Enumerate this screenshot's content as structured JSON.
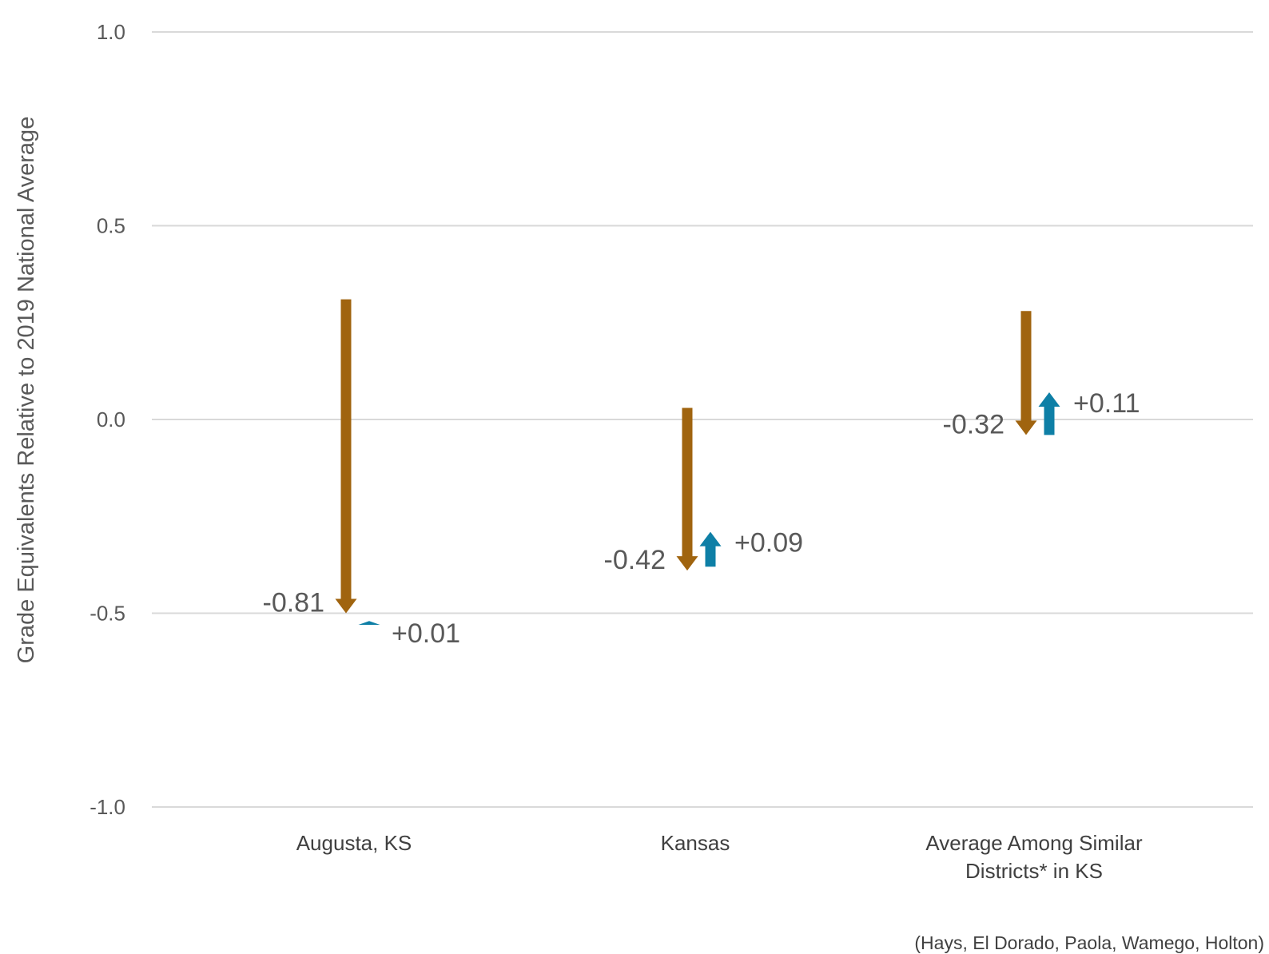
{
  "chart_data": {
    "type": "arrow",
    "ylabel": "Grade Equivalents Relative to 2019 National Average",
    "ylim": [
      -1.0,
      1.0
    ],
    "yticks": [
      1.0,
      0.5,
      0.0,
      -0.5,
      -1.0
    ],
    "ytick_labels": [
      "1.0",
      "0.5",
      "0.0",
      "-0.5",
      "-1.0"
    ],
    "grid": true,
    "categories": [
      {
        "lines": [
          "Augusta, KS"
        ]
      },
      {
        "lines": [
          "Kansas"
        ]
      },
      {
        "lines": [
          "Average Among Similar",
          "Districts* in KS"
        ]
      }
    ],
    "series": [
      {
        "color": "#A0640F",
        "direction": "down",
        "segments": [
          {
            "start": 0.31,
            "end": -0.5,
            "label": "-0.81"
          },
          {
            "start": 0.03,
            "end": -0.39,
            "label": "-0.42"
          },
          {
            "start": 0.28,
            "end": -0.04,
            "label": "-0.32"
          }
        ]
      },
      {
        "color": "#0E7FA6",
        "direction": "up",
        "segments": [
          {
            "start": -0.53,
            "end": -0.52,
            "label": "+0.01"
          },
          {
            "start": -0.38,
            "end": -0.29,
            "label": "+0.09"
          },
          {
            "start": -0.04,
            "end": 0.07,
            "label": "+0.11"
          }
        ]
      }
    ],
    "footnote": "(Hays, El Dorado, Paola, Wamego, Holton)"
  }
}
